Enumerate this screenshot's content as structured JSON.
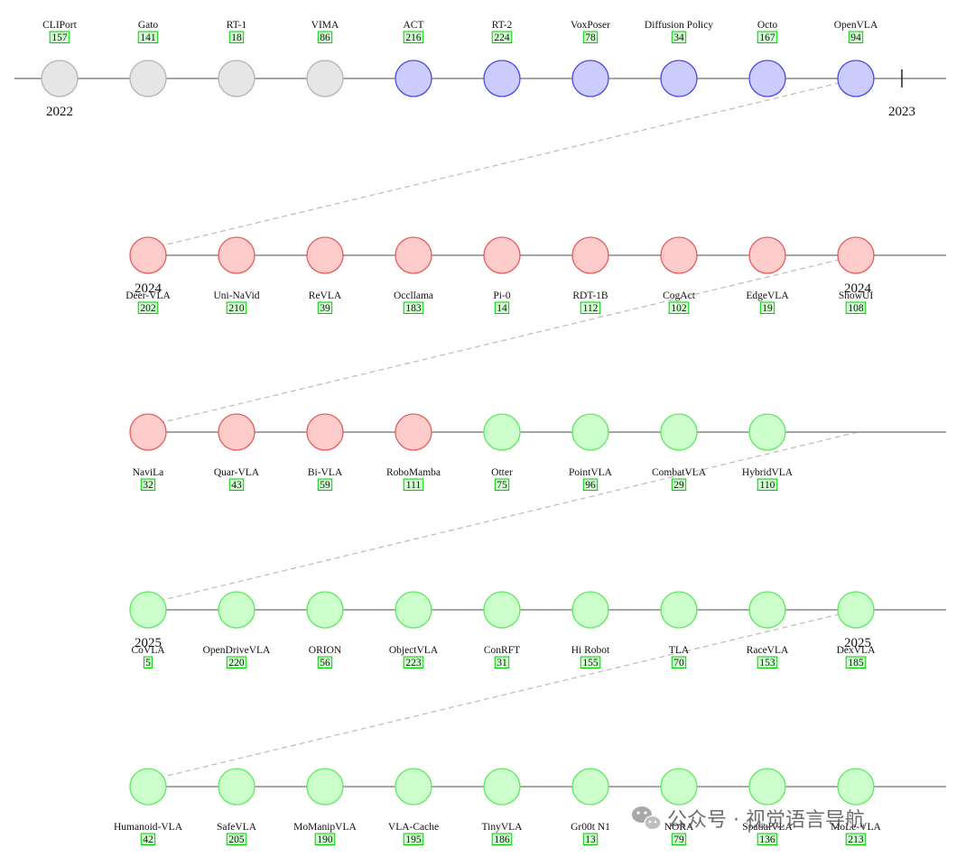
{
  "colors": {
    "gray_fill": "#e6e6e6",
    "gray_stroke": "#b4b4b4",
    "blue_fill": "#ccccff",
    "blue_stroke": "#4a4aea",
    "red_fill": "#ffcccc",
    "red_stroke": "#e85c5c",
    "green_fill": "#ccffcc",
    "green_stroke": "#5ee85e",
    "ref_box_fill": "#aaffaa",
    "ref_box_stroke": "#00cc00",
    "axis": "#888888",
    "connector": "#bbbbbb"
  },
  "rows": [
    {
      "labels_above": true,
      "start_year": "2022",
      "end_year": "2023",
      "items": [
        {
          "name": "CLIPort",
          "ref": "157",
          "group": "gray"
        },
        {
          "name": "Gato",
          "ref": "141",
          "group": "gray"
        },
        {
          "name": "RT-1",
          "ref": "18",
          "group": "gray"
        },
        {
          "name": "VIMA",
          "ref": "86",
          "group": "gray"
        },
        {
          "name": "ACT",
          "ref": "216",
          "group": "blue"
        },
        {
          "name": "RT-2",
          "ref": "224",
          "group": "blue"
        },
        {
          "name": "VoxPoser",
          "ref": "78",
          "group": "blue"
        },
        {
          "name": "Diffusion Policy",
          "ref": "34",
          "group": "blue"
        },
        {
          "name": "Octo",
          "ref": "167",
          "group": "blue"
        },
        {
          "name": "OpenVLA",
          "ref": "94",
          "group": "blue"
        }
      ]
    },
    {
      "labels_above": false,
      "start_year": "2024",
      "end_year": "2024",
      "items": [
        {
          "name": "Deer-VLA",
          "ref": "202",
          "group": "red"
        },
        {
          "name": "Uni-NaVid",
          "ref": "210",
          "group": "red"
        },
        {
          "name": "ReVLA",
          "ref": "39",
          "group": "red"
        },
        {
          "name": "Occllama",
          "ref": "183",
          "group": "red"
        },
        {
          "name": "Pi-0",
          "ref": "14",
          "group": "red"
        },
        {
          "name": "RDT-1B",
          "ref": "112",
          "group": "red"
        },
        {
          "name": "CogAct",
          "ref": "102",
          "group": "red"
        },
        {
          "name": "EdgeVLA",
          "ref": "19",
          "group": "red"
        },
        {
          "name": "ShowUI",
          "ref": "108",
          "group": "red"
        }
      ]
    },
    {
      "labels_above": false,
      "start_year": "",
      "end_year": "",
      "items": [
        {
          "name": "NaviLa",
          "ref": "32",
          "group": "red"
        },
        {
          "name": "Quar-VLA",
          "ref": "43",
          "group": "red"
        },
        {
          "name": "Bi-VLA",
          "ref": "59",
          "group": "red"
        },
        {
          "name": "RoboMamba",
          "ref": "111",
          "group": "red"
        },
        {
          "name": "Otter",
          "ref": "75",
          "group": "green"
        },
        {
          "name": "PointVLA",
          "ref": "96",
          "group": "green"
        },
        {
          "name": "CombatVLA",
          "ref": "29",
          "group": "green"
        },
        {
          "name": "HybridVLA",
          "ref": "110",
          "group": "green"
        }
      ]
    },
    {
      "labels_above": false,
      "start_year": "2025",
      "end_year": "2025",
      "items": [
        {
          "name": "CoVLA",
          "ref": "5",
          "group": "green"
        },
        {
          "name": "OpenDriveVLA",
          "ref": "220",
          "group": "green"
        },
        {
          "name": "ORION",
          "ref": "56",
          "group": "green"
        },
        {
          "name": "ObjectVLA",
          "ref": "223",
          "group": "green"
        },
        {
          "name": "ConRFT",
          "ref": "31",
          "group": "green"
        },
        {
          "name": "Hi Robot",
          "ref": "155",
          "group": "green"
        },
        {
          "name": "TLA",
          "ref": "70",
          "group": "green"
        },
        {
          "name": "RaceVLA",
          "ref": "153",
          "group": "green"
        },
        {
          "name": "DexVLA",
          "ref": "185",
          "group": "green"
        }
      ]
    },
    {
      "labels_above": false,
      "start_year": "",
      "end_year": "",
      "items": [
        {
          "name": "Humanoid-VLA",
          "ref": "42",
          "group": "green"
        },
        {
          "name": "SafeVLA",
          "ref": "205",
          "group": "green"
        },
        {
          "name": "MoManipVLA",
          "ref": "190",
          "group": "green"
        },
        {
          "name": "VLA-Cache",
          "ref": "195",
          "group": "green"
        },
        {
          "name": "TinyVLA",
          "ref": "186",
          "group": "green"
        },
        {
          "name": "Gr00t N1",
          "ref": "13",
          "group": "green"
        },
        {
          "name": "NORA",
          "ref": "79",
          "group": "green"
        },
        {
          "name": "SpatialVLA",
          "ref": "136",
          "group": "green"
        },
        {
          "name": "MoLe-VLA",
          "ref": "213",
          "group": "green"
        }
      ]
    }
  ],
  "watermark": {
    "text": "公众号 · 视觉语言导航",
    "icon": "wechat-icon"
  }
}
